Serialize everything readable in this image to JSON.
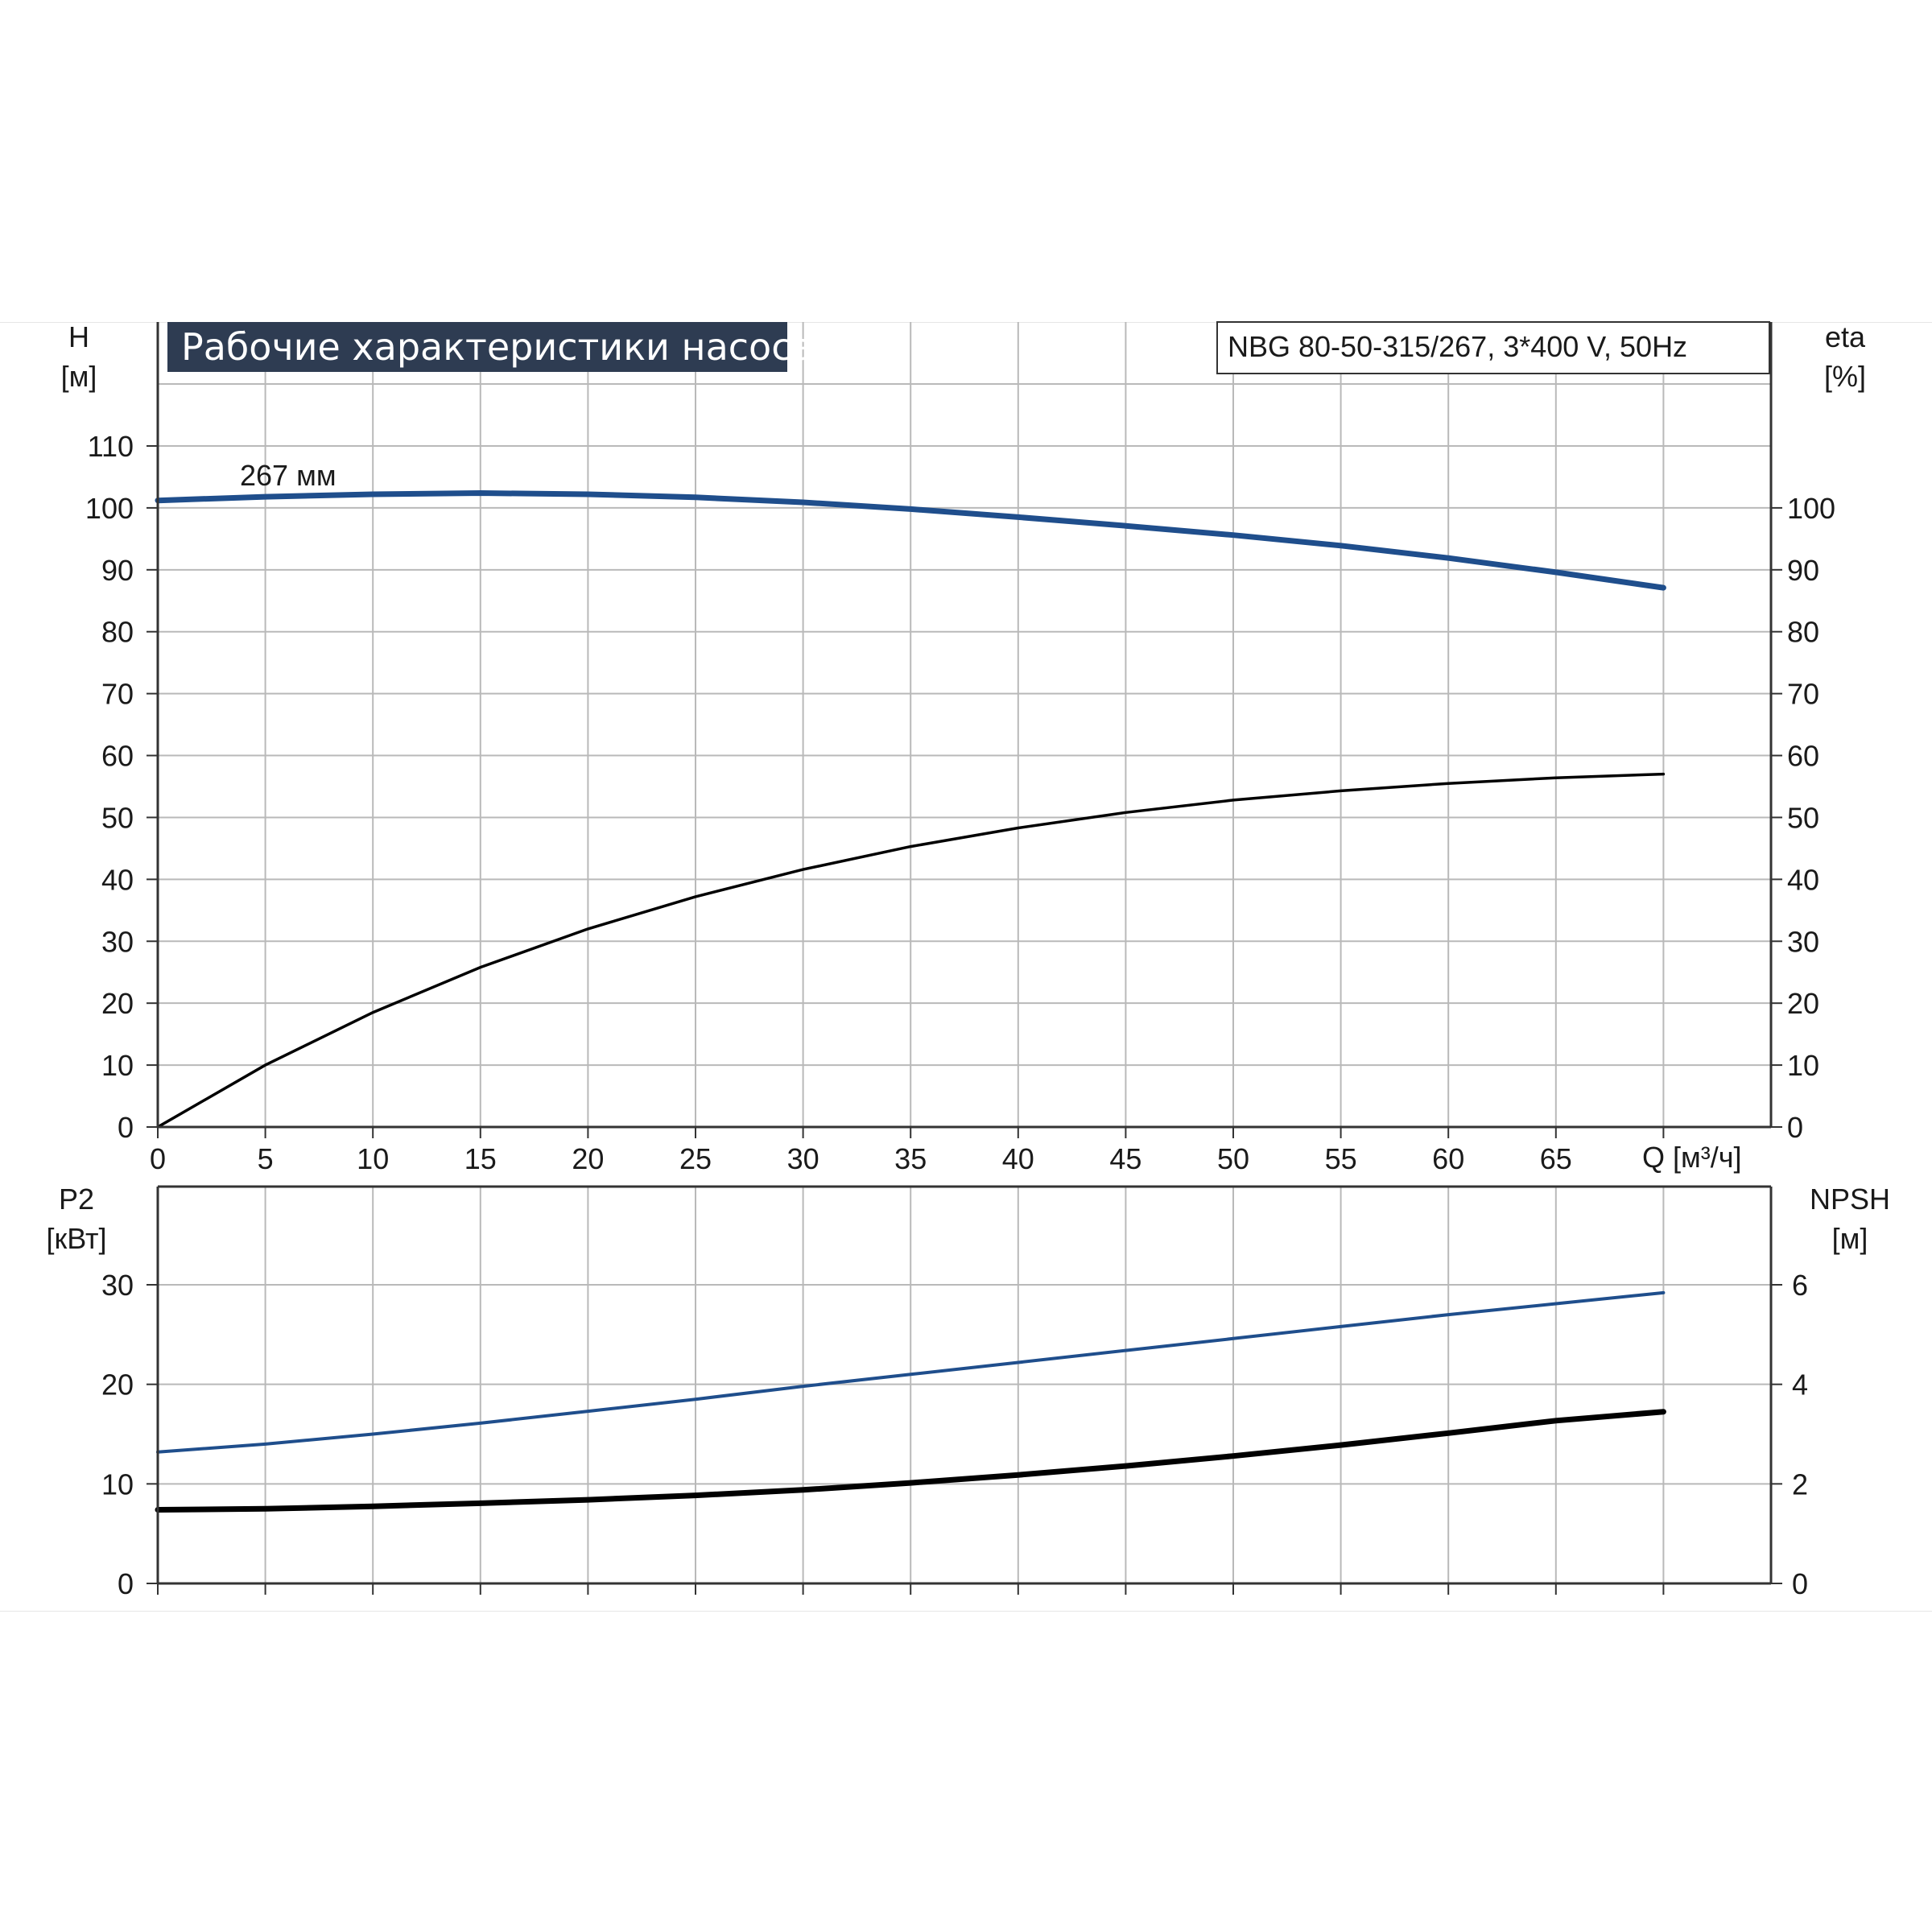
{
  "chart_title": "Рабочие характеристики насоса",
  "model": "NBG 80-50-315/267, 3*400 V, 50Hz",
  "curve_label": "267 мм",
  "colors": {
    "blue": "#1f4e8c",
    "black": "#000000",
    "grid": "#b9b9b9",
    "title_bg": "#2e3c52"
  },
  "chart_data": [
    {
      "type": "line",
      "title": "Рабочие характеристики насоса",
      "left_axis": {
        "label": "H",
        "unit": "[м]",
        "ylim": [
          0,
          110
        ],
        "ticks": [
          0,
          10,
          20,
          30,
          40,
          50,
          60,
          70,
          80,
          90,
          100,
          110
        ]
      },
      "right_axis": {
        "label": "eta",
        "unit": "[%]",
        "ylim": [
          0,
          110
        ],
        "ticks": [
          0,
          10,
          20,
          30,
          40,
          50,
          60,
          70,
          80,
          90,
          100
        ]
      },
      "x_axis": {
        "label": "Q [м³/ч]",
        "xlim": [
          0,
          75
        ],
        "ticks": [
          0,
          5,
          10,
          15,
          20,
          25,
          30,
          35,
          40,
          45,
          50,
          55,
          60,
          65
        ]
      },
      "grid": true,
      "series": [
        {
          "axis": "left",
          "color": "blue",
          "points": [
            [
              0,
              101.2
            ],
            [
              5,
              101.8
            ],
            [
              10,
              102.2
            ],
            [
              15,
              102.4
            ],
            [
              20,
              102.2
            ],
            [
              25,
              101.7
            ],
            [
              30,
              100.9
            ],
            [
              35,
              99.8
            ],
            [
              40,
              98.5
            ],
            [
              45,
              97.1
            ],
            [
              50,
              95.6
            ],
            [
              55,
              93.9
            ],
            [
              60,
              91.9
            ],
            [
              65,
              89.6
            ],
            [
              70,
              87.1
            ]
          ]
        },
        {
          "axis": "right",
          "color": "black",
          "points": [
            [
              0,
              0
            ],
            [
              5,
              10
            ],
            [
              10,
              18.5
            ],
            [
              15,
              25.8
            ],
            [
              20,
              32.0
            ],
            [
              25,
              37.2
            ],
            [
              30,
              41.6
            ],
            [
              35,
              45.3
            ],
            [
              40,
              48.3
            ],
            [
              45,
              50.8
            ],
            [
              50,
              52.8
            ],
            [
              55,
              54.3
            ],
            [
              60,
              55.5
            ],
            [
              65,
              56.4
            ],
            [
              70,
              57.0
            ]
          ]
        }
      ]
    },
    {
      "type": "line",
      "left_axis": {
        "label": "P2",
        "unit": "[кВт]",
        "ylim": [
          0,
          40
        ],
        "ticks": [
          0,
          10,
          20,
          30
        ]
      },
      "right_axis": {
        "label": "NPSH",
        "unit": "[м]",
        "ylim": [
          0,
          8
        ],
        "ticks": [
          0,
          2,
          4,
          6
        ]
      },
      "x_axis": {
        "xlim": [
          0,
          75
        ]
      },
      "grid": true,
      "series": [
        {
          "axis": "left",
          "color": "blue",
          "points": [
            [
              0,
              13.2
            ],
            [
              5,
              14.0
            ],
            [
              10,
              15.0
            ],
            [
              15,
              16.1
            ],
            [
              20,
              17.3
            ],
            [
              25,
              18.5
            ],
            [
              30,
              19.8
            ],
            [
              35,
              21.0
            ],
            [
              40,
              22.2
            ],
            [
              45,
              23.4
            ],
            [
              50,
              24.6
            ],
            [
              55,
              25.8
            ],
            [
              60,
              27.0
            ],
            [
              65,
              28.1
            ],
            [
              70,
              29.2
            ]
          ]
        },
        {
          "axis": "right",
          "color": "black",
          "points": [
            [
              0,
              1.48
            ],
            [
              5,
              1.5
            ],
            [
              10,
              1.55
            ],
            [
              15,
              1.61
            ],
            [
              20,
              1.68
            ],
            [
              25,
              1.77
            ],
            [
              30,
              1.88
            ],
            [
              35,
              2.02
            ],
            [
              40,
              2.18
            ],
            [
              45,
              2.36
            ],
            [
              50,
              2.56
            ],
            [
              55,
              2.78
            ],
            [
              60,
              3.02
            ],
            [
              65,
              3.27
            ],
            [
              70,
              3.45
            ]
          ]
        }
      ]
    }
  ]
}
